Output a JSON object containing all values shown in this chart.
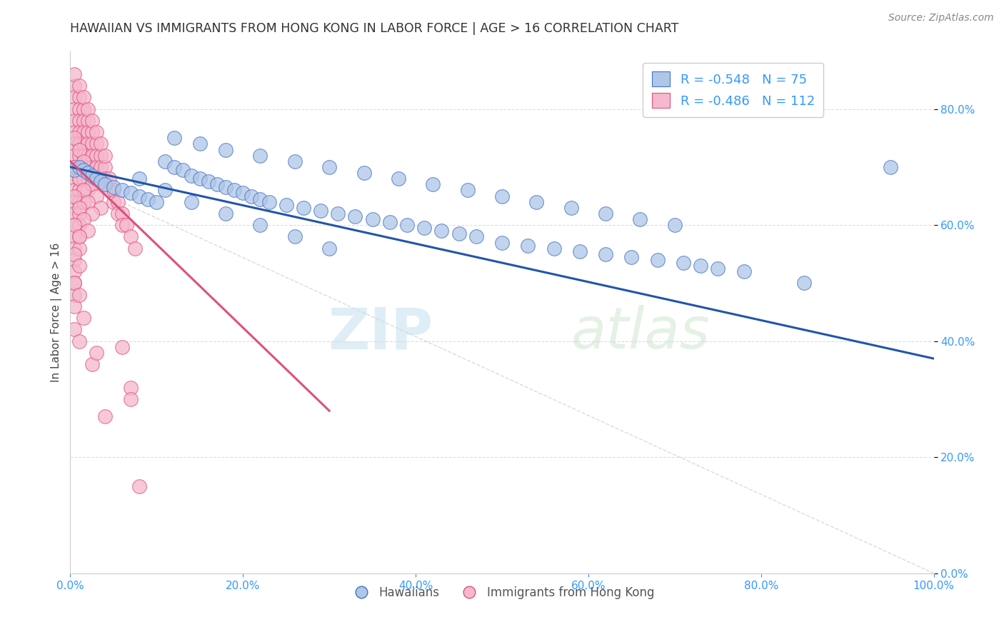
{
  "title": "HAWAIIAN VS IMMIGRANTS FROM HONG KONG IN LABOR FORCE | AGE > 16 CORRELATION CHART",
  "source": "Source: ZipAtlas.com",
  "ylabel": "In Labor Force | Age > 16",
  "watermark_zip": "ZIP",
  "watermark_atlas": "atlas",
  "xlim": [
    0.0,
    1.0
  ],
  "ylim": [
    0.0,
    0.9
  ],
  "xticks": [
    0.0,
    0.2,
    0.4,
    0.6,
    0.8,
    1.0
  ],
  "yticks": [
    0.0,
    0.2,
    0.4,
    0.6,
    0.8
  ],
  "xtick_labels": [
    "0.0%",
    "20.0%",
    "40.0%",
    "60.0%",
    "80.0%",
    "100.0%"
  ],
  "ytick_labels": [
    "0.0%",
    "20.0%",
    "40.0%",
    "60.0%",
    "80.0%"
  ],
  "blue_R": -0.548,
  "blue_N": 75,
  "pink_R": -0.486,
  "pink_N": 112,
  "blue_color": "#aec6e8",
  "blue_edge_color": "#4472c4",
  "pink_color": "#f5b8cc",
  "pink_edge_color": "#e05080",
  "pink_line_color": "#e0507a",
  "blue_line_color": "#2255aa",
  "legend_blue_label": "Hawaiians",
  "legend_pink_label": "Immigrants from Hong Kong",
  "blue_scatter_x": [
    0.005,
    0.01,
    0.015,
    0.02,
    0.025,
    0.03,
    0.035,
    0.04,
    0.05,
    0.06,
    0.07,
    0.08,
    0.09,
    0.1,
    0.11,
    0.12,
    0.13,
    0.14,
    0.15,
    0.16,
    0.17,
    0.18,
    0.19,
    0.2,
    0.21,
    0.22,
    0.23,
    0.25,
    0.27,
    0.29,
    0.31,
    0.33,
    0.35,
    0.37,
    0.39,
    0.41,
    0.43,
    0.45,
    0.47,
    0.5,
    0.53,
    0.56,
    0.59,
    0.62,
    0.65,
    0.68,
    0.71,
    0.73,
    0.75,
    0.78,
    0.12,
    0.15,
    0.18,
    0.22,
    0.26,
    0.3,
    0.34,
    0.38,
    0.42,
    0.46,
    0.5,
    0.54,
    0.58,
    0.62,
    0.66,
    0.7,
    0.08,
    0.11,
    0.14,
    0.18,
    0.22,
    0.26,
    0.3,
    0.85,
    0.95
  ],
  "blue_scatter_y": [
    0.695,
    0.7,
    0.695,
    0.69,
    0.685,
    0.68,
    0.675,
    0.67,
    0.665,
    0.66,
    0.655,
    0.65,
    0.645,
    0.64,
    0.71,
    0.7,
    0.695,
    0.685,
    0.68,
    0.675,
    0.67,
    0.665,
    0.66,
    0.655,
    0.65,
    0.645,
    0.64,
    0.635,
    0.63,
    0.625,
    0.62,
    0.615,
    0.61,
    0.605,
    0.6,
    0.595,
    0.59,
    0.585,
    0.58,
    0.57,
    0.565,
    0.56,
    0.555,
    0.55,
    0.545,
    0.54,
    0.535,
    0.53,
    0.525,
    0.52,
    0.75,
    0.74,
    0.73,
    0.72,
    0.71,
    0.7,
    0.69,
    0.68,
    0.67,
    0.66,
    0.65,
    0.64,
    0.63,
    0.62,
    0.61,
    0.6,
    0.68,
    0.66,
    0.64,
    0.62,
    0.6,
    0.58,
    0.56,
    0.5,
    0.7
  ],
  "pink_scatter_x": [
    0.005,
    0.005,
    0.005,
    0.005,
    0.005,
    0.005,
    0.005,
    0.005,
    0.005,
    0.005,
    0.005,
    0.005,
    0.005,
    0.005,
    0.005,
    0.005,
    0.005,
    0.005,
    0.005,
    0.005,
    0.01,
    0.01,
    0.01,
    0.01,
    0.01,
    0.01,
    0.01,
    0.01,
    0.01,
    0.01,
    0.01,
    0.01,
    0.01,
    0.01,
    0.015,
    0.015,
    0.015,
    0.015,
    0.015,
    0.015,
    0.015,
    0.015,
    0.015,
    0.02,
    0.02,
    0.02,
    0.02,
    0.02,
    0.02,
    0.02,
    0.025,
    0.025,
    0.025,
    0.025,
    0.03,
    0.03,
    0.03,
    0.035,
    0.035,
    0.04,
    0.04,
    0.045,
    0.045,
    0.05,
    0.05,
    0.055,
    0.055,
    0.06,
    0.06,
    0.065,
    0.07,
    0.075,
    0.005,
    0.01,
    0.015,
    0.02,
    0.025,
    0.03,
    0.035,
    0.04,
    0.005,
    0.01,
    0.015,
    0.02,
    0.025,
    0.03,
    0.035,
    0.005,
    0.01,
    0.015,
    0.02,
    0.025,
    0.005,
    0.01,
    0.015,
    0.02,
    0.005,
    0.01,
    0.005,
    0.01,
    0.005,
    0.01,
    0.015,
    0.025,
    0.04,
    0.06,
    0.03,
    0.07,
    0.08,
    0.07,
    0.005,
    0.01
  ],
  "pink_scatter_y": [
    0.84,
    0.82,
    0.8,
    0.78,
    0.76,
    0.74,
    0.72,
    0.7,
    0.68,
    0.66,
    0.64,
    0.62,
    0.6,
    0.58,
    0.56,
    0.54,
    0.52,
    0.5,
    0.48,
    0.46,
    0.82,
    0.8,
    0.78,
    0.76,
    0.74,
    0.72,
    0.7,
    0.68,
    0.66,
    0.64,
    0.62,
    0.6,
    0.58,
    0.56,
    0.8,
    0.78,
    0.76,
    0.74,
    0.72,
    0.7,
    0.68,
    0.66,
    0.64,
    0.78,
    0.76,
    0.74,
    0.72,
    0.7,
    0.68,
    0.66,
    0.76,
    0.74,
    0.72,
    0.7,
    0.74,
    0.72,
    0.7,
    0.72,
    0.7,
    0.7,
    0.68,
    0.68,
    0.66,
    0.66,
    0.64,
    0.64,
    0.62,
    0.62,
    0.6,
    0.6,
    0.58,
    0.56,
    0.86,
    0.84,
    0.82,
    0.8,
    0.78,
    0.76,
    0.74,
    0.72,
    0.75,
    0.73,
    0.71,
    0.69,
    0.67,
    0.65,
    0.63,
    0.7,
    0.68,
    0.66,
    0.64,
    0.62,
    0.65,
    0.63,
    0.61,
    0.59,
    0.6,
    0.58,
    0.55,
    0.53,
    0.5,
    0.48,
    0.44,
    0.36,
    0.27,
    0.39,
    0.38,
    0.32,
    0.15,
    0.3,
    0.42,
    0.4
  ],
  "blue_trend_x0": 0.0,
  "blue_trend_x1": 1.0,
  "blue_trend_y0": 0.7,
  "blue_trend_y1": 0.37,
  "pink_trend_x0": 0.0,
  "pink_trend_x1": 0.3,
  "pink_trend_y0": 0.71,
  "pink_trend_y1": 0.28,
  "diag_line_color": "#cccccc",
  "background_color": "#ffffff",
  "grid_color": "#dddddd"
}
